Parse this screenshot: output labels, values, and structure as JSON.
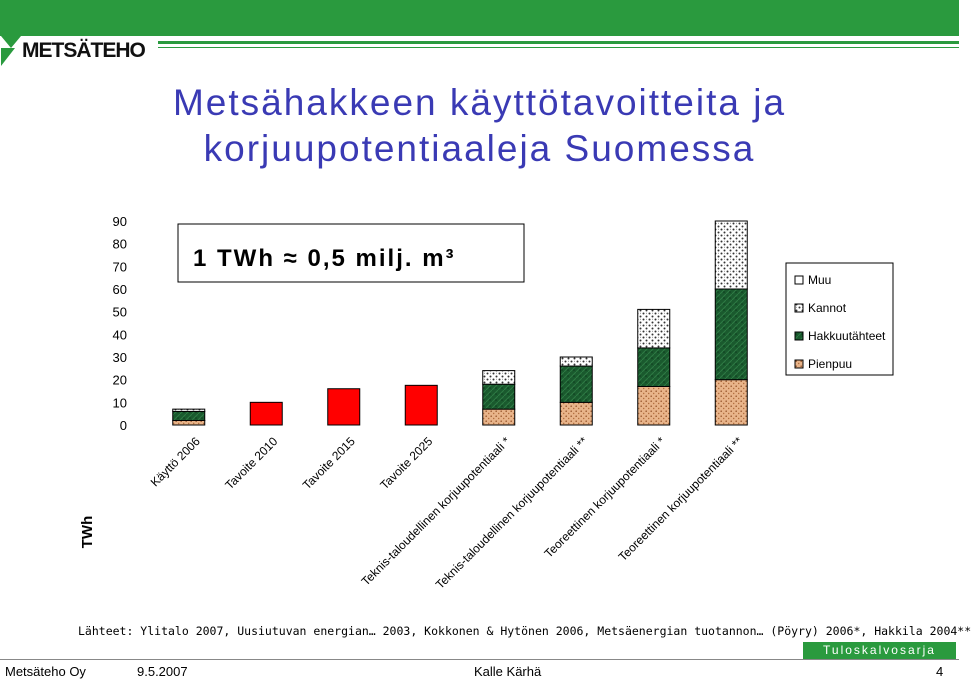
{
  "header": {
    "logo_text": "METSÄTEHO",
    "title_line1": "Metsähakkeen käyttötavoitteita ja",
    "title_line2": "korjuupotentiaaleja Suomessa"
  },
  "annotation": {
    "conversion_text": "1 TWh ≈ 0,5 milj. m³"
  },
  "chart_data": {
    "type": "bar",
    "stacked": true,
    "ylabel": "TWh",
    "ylim": [
      0,
      90
    ],
    "yticks": [
      "0",
      "10",
      "20",
      "30",
      "40",
      "50",
      "60",
      "70",
      "80",
      "90"
    ],
    "categories": [
      "Käyttö 2006",
      "Tavoite 2010",
      "Tavoite 2015",
      "Tavoite 2025",
      "Teknis-taloudellinen korjuupotentiaali *",
      "Teknis-taloudellinen korjuupotentiaali **",
      "Teoreettinen korjuupotentiaali *",
      "Teoreettinen korjuupotentiaali **"
    ],
    "series": [
      {
        "name": "Pienpuu",
        "color": "#e8b48a",
        "values": [
          2,
          0,
          0,
          0,
          7,
          10,
          17,
          20
        ]
      },
      {
        "name": "Hakkuutähteet",
        "color": "#1a5a2e",
        "values": [
          4,
          0,
          0,
          0,
          11,
          16,
          17,
          40
        ]
      },
      {
        "name": "Kannot",
        "color": "#e0e0e0",
        "values": [
          1,
          0,
          0,
          0,
          6,
          4,
          17,
          30
        ]
      },
      {
        "name": "Muu",
        "color": "#ffffff",
        "values": [
          0,
          0,
          0,
          0,
          0,
          0,
          0,
          0
        ]
      },
      {
        "name": "",
        "color": "#ff0000",
        "values": [
          0,
          10,
          16,
          17.5,
          0,
          0,
          0,
          0
        ]
      }
    ],
    "legend_order": [
      "Muu",
      "Kannot",
      "Hakkuutähteet",
      "Pienpuu"
    ],
    "legend_position": "right",
    "grid": false
  },
  "footer": {
    "sources": "Lähteet: Ylitalo 2007, Uusiutuvan energian… 2003, Kokkonen & Hytönen 2006, Metsäenergian tuotannon… (Pöyry) 2006*, Hakkila 2004**",
    "series_label": "Tuloskalvosarja",
    "org": "Metsäteho Oy",
    "date": "9.5.2007",
    "author": "Kalle Kärhä",
    "page": "4"
  }
}
